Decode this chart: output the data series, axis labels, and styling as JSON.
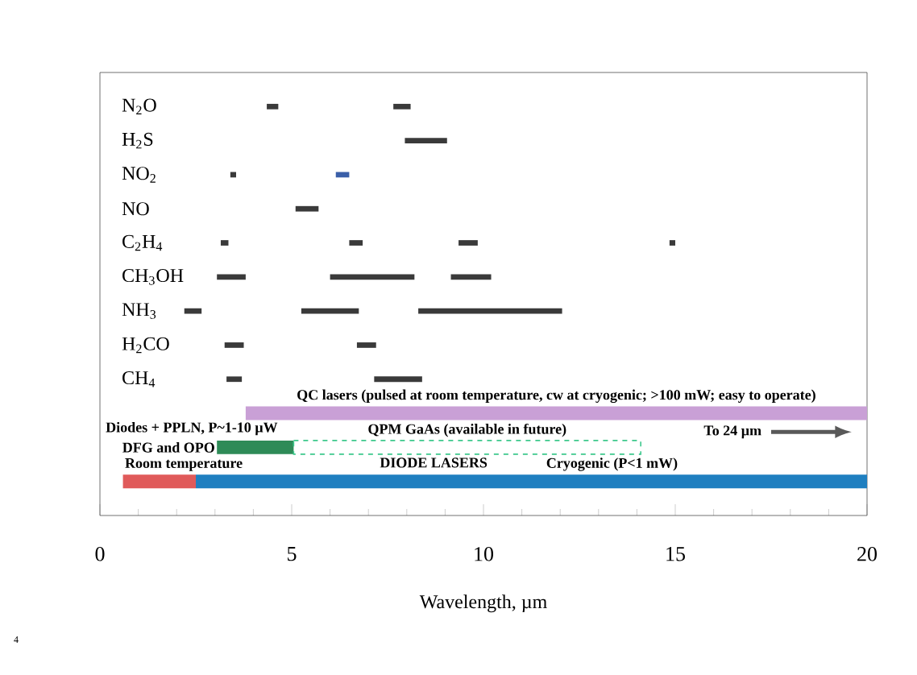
{
  "chart_data": {
    "type": "bar",
    "orientation": "horizontal",
    "xlabel": "Wavelength, µm",
    "xlim": [
      0,
      20
    ],
    "xticks": [
      0,
      5,
      10,
      15,
      20
    ],
    "categories": [
      "N$_{2}$O",
      "H$_{2}$S",
      "NO$_{2}$",
      "NO",
      "C$_{2}$H$_{4}$",
      "CH$_{3}$OH",
      "NH$_{3}$",
      "H$_{2}$CO",
      "CH$_{4}$",
      null,
      null,
      null
    ],
    "series": [
      {
        "color": "#3a3a3a",
        "base": [
          4.35,
          7.95,
          3.4,
          5.1,
          3.15,
          3.05,
          2.2,
          3.25,
          3.3,
          null,
          null,
          null
        ],
        "values": [
          0.3,
          1.1,
          0.15,
          0.6,
          0.2,
          0.75,
          0.45,
          0.5,
          0.4,
          null,
          null,
          null
        ]
      },
      {
        "color": "#3a3a3a",
        "base": [
          7.65,
          null,
          null,
          null,
          6.5,
          6.0,
          5.25,
          6.7,
          7.15,
          null,
          null,
          null
        ],
        "values": [
          0.45,
          null,
          null,
          null,
          0.35,
          2.2,
          1.5,
          0.5,
          1.25,
          null,
          null,
          null
        ]
      },
      {
        "color": "#3a3a3a",
        "base": [
          null,
          null,
          null,
          null,
          9.35,
          9.15,
          8.3,
          null,
          null,
          null,
          null,
          null
        ],
        "values": [
          null,
          null,
          null,
          null,
          0.5,
          1.05,
          3.75,
          null,
          null,
          null,
          null,
          null
        ]
      },
      {
        "color": "#3a3a3a",
        "base": [
          null,
          null,
          null,
          null,
          14.85,
          null,
          null,
          null,
          null,
          null,
          null,
          null
        ],
        "values": [
          null,
          null,
          null,
          null,
          0.15,
          null,
          null,
          null,
          null,
          null,
          null,
          null
        ]
      },
      {
        "color": "#3a5fa8",
        "base": [
          null,
          null,
          6.15,
          null,
          null,
          null,
          null,
          null,
          null,
          null,
          null,
          null
        ],
        "values": [
          null,
          null,
          0.35,
          null,
          null,
          null,
          null,
          null,
          null,
          null,
          null,
          null
        ]
      },
      {
        "name": "QC lasers (pulsed at room temperature, cw at cryogenic; >100 mW; easy to operate)",
        "color": "#c9a0d6",
        "base": [
          null,
          null,
          null,
          null,
          null,
          null,
          null,
          null,
          null,
          3.8,
          null,
          null
        ],
        "values": [
          null,
          null,
          null,
          null,
          null,
          null,
          null,
          null,
          null,
          16.2,
          null,
          null
        ]
      },
      {
        "name": "DFG and OPO",
        "color": "#2e8b57",
        "base": [
          null,
          null,
          null,
          null,
          null,
          null,
          null,
          null,
          null,
          null,
          3.05,
          null
        ],
        "values": [
          null,
          null,
          null,
          null,
          null,
          null,
          null,
          null,
          null,
          null,
          2.0,
          null
        ]
      },
      {
        "name": "QPM GaAs (available in future)",
        "color": "#3cc88c",
        "line_style": "dashed",
        "base": [
          null,
          null,
          null,
          null,
          null,
          null,
          null,
          null,
          null,
          null,
          5.05,
          null
        ],
        "values": [
          null,
          null,
          null,
          null,
          null,
          null,
          null,
          null,
          null,
          null,
          9.05,
          null
        ]
      },
      {
        "name": "Room temperature",
        "color": "#e05a5a",
        "base": [
          null,
          null,
          null,
          null,
          null,
          null,
          null,
          null,
          null,
          null,
          null,
          0.6
        ],
        "values": [
          null,
          null,
          null,
          null,
          null,
          null,
          null,
          null,
          null,
          null,
          null,
          1.9
        ]
      },
      {
        "name": "Cryogenic (P<1 mW)",
        "color": "#1f7fc0",
        "base": [
          null,
          null,
          null,
          null,
          null,
          null,
          null,
          null,
          null,
          null,
          null,
          2.5
        ],
        "values": [
          null,
          null,
          null,
          null,
          null,
          null,
          null,
          null,
          null,
          null,
          null,
          17.5
        ]
      }
    ],
    "annotations": [
      "Diodes + PPLN, P~1-10 µW",
      "DIODE LASERS",
      "To 24 µm",
      "4"
    ]
  }
}
